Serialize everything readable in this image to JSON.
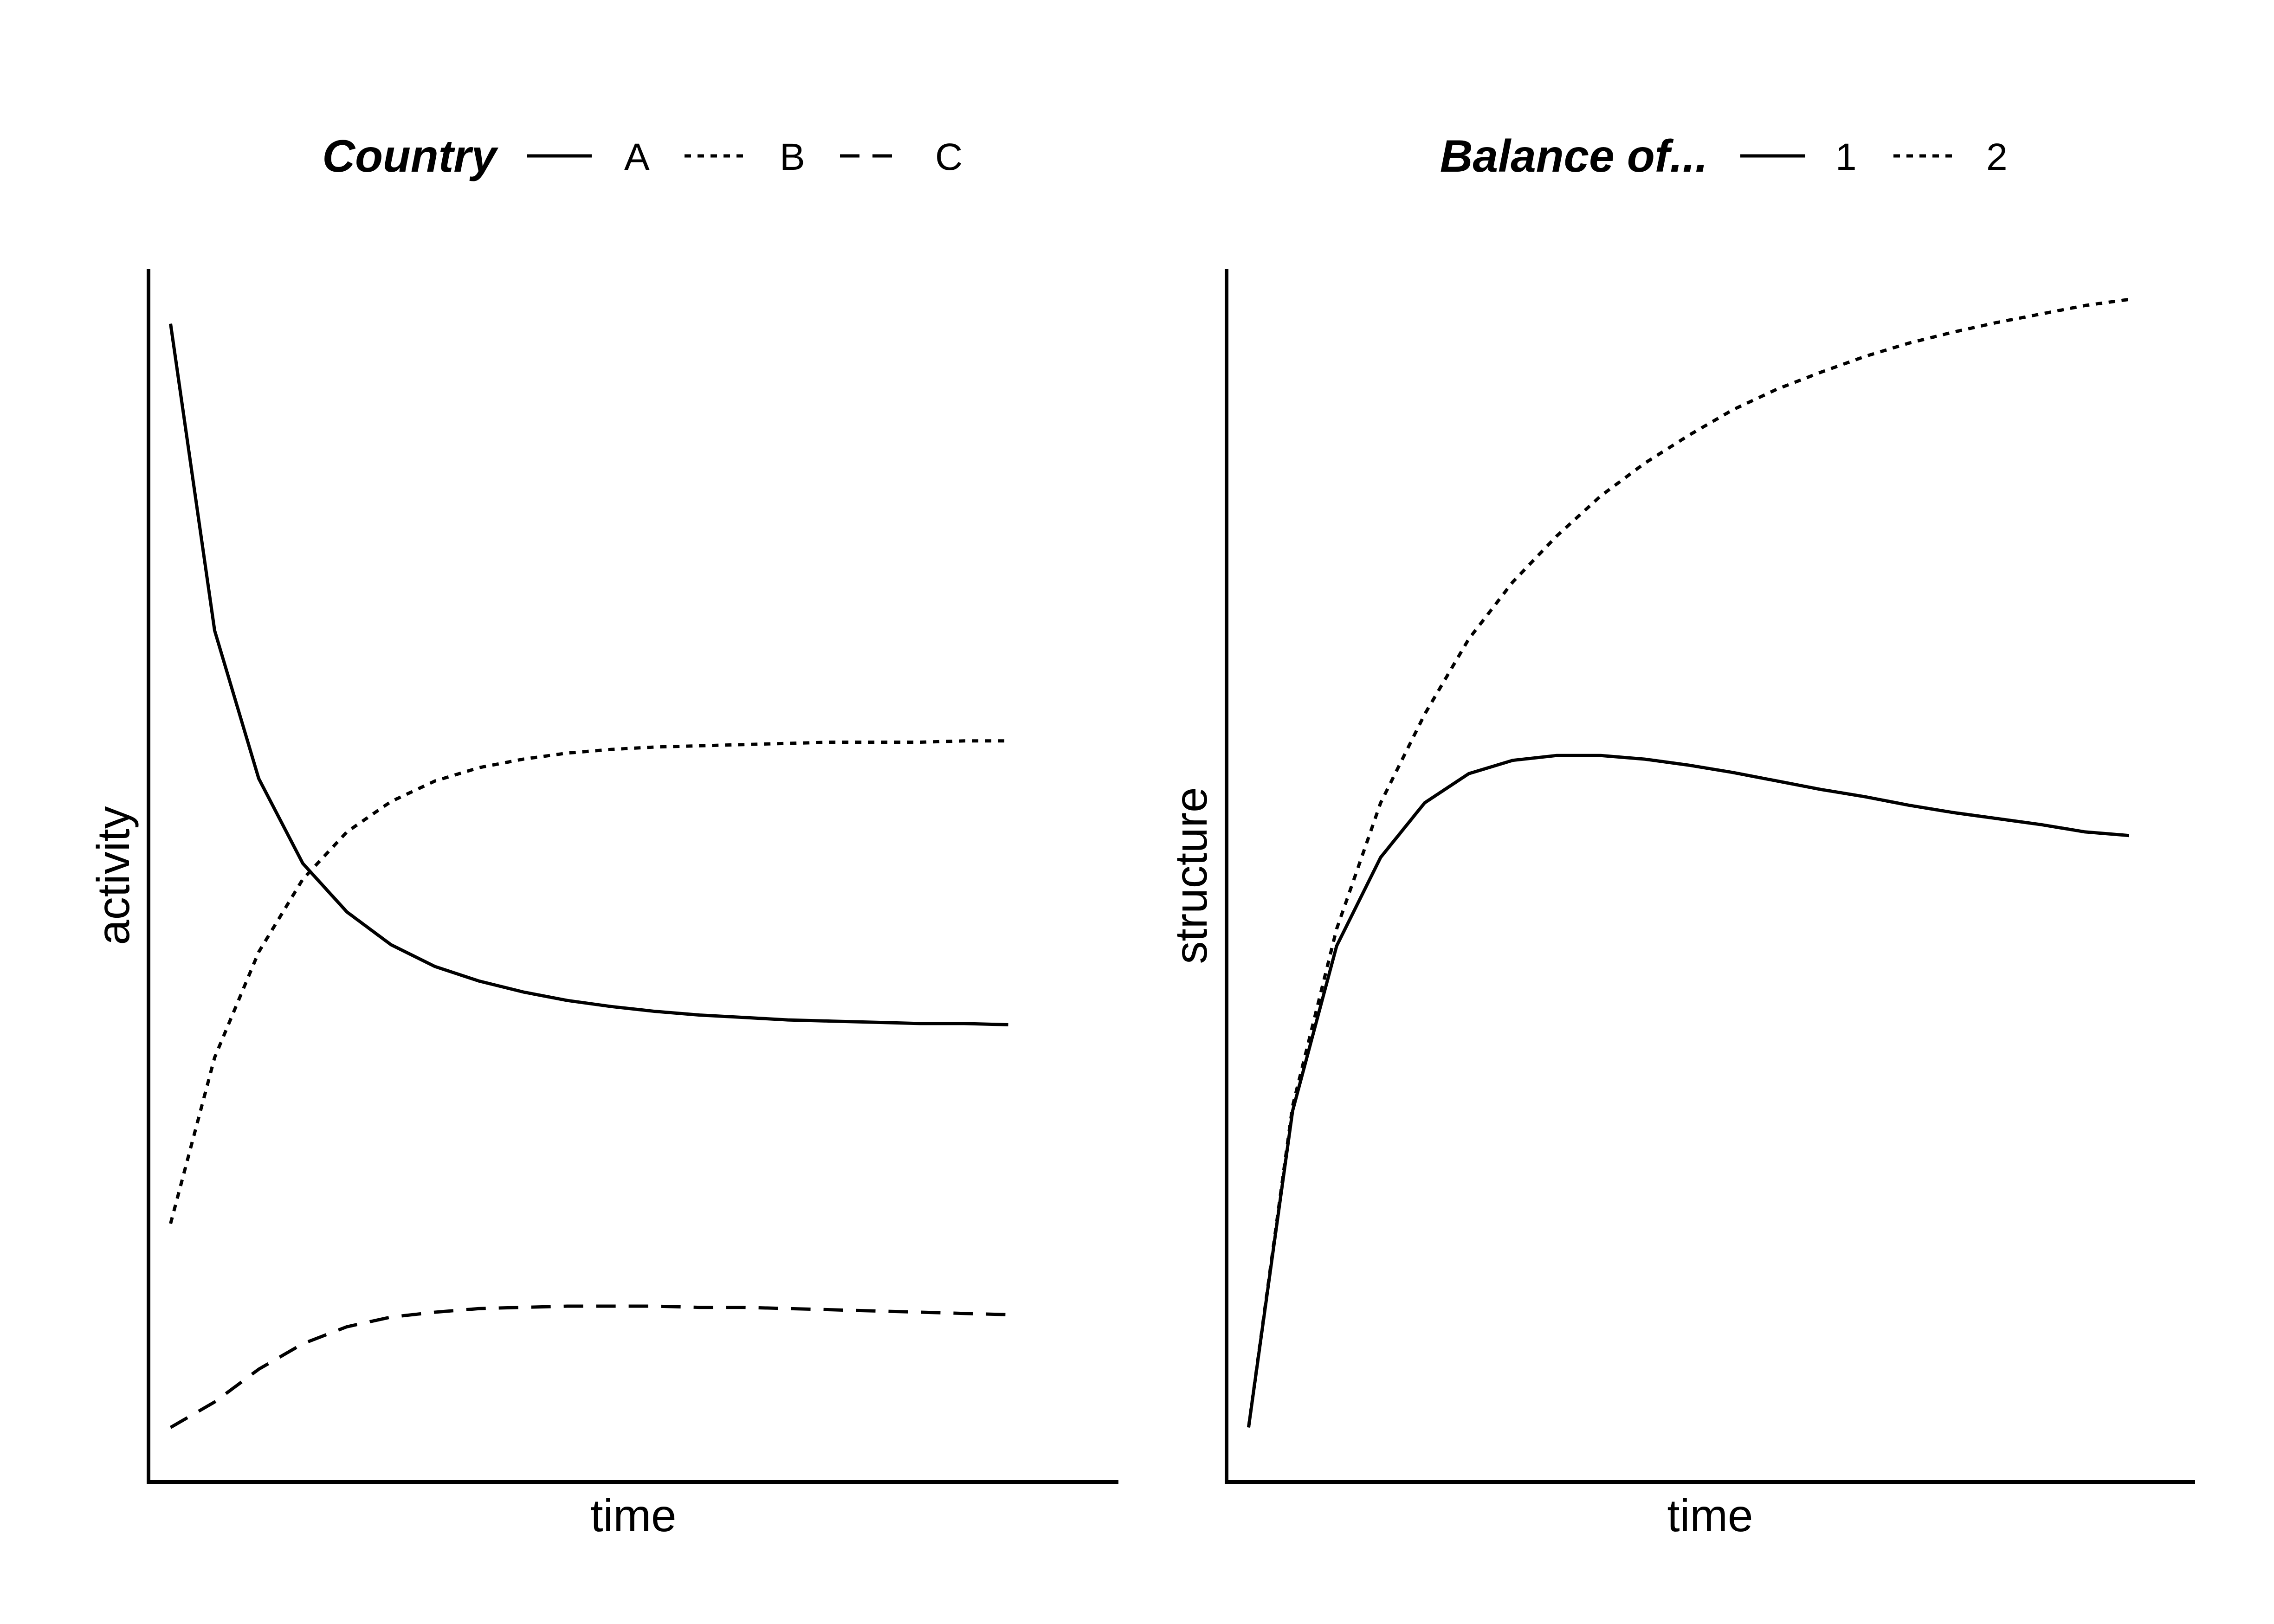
{
  "chart_data": [
    {
      "type": "line",
      "legend": {
        "title": "Country",
        "position": "top"
      },
      "xlabel": "time",
      "ylabel": "activity",
      "xlim": [
        0.5,
        22.5
      ],
      "ylim": [
        0,
        100
      ],
      "grid": false,
      "series": [
        {
          "name": "A",
          "linetype": "solid",
          "x": [
            1,
            2,
            3,
            4,
            5,
            6,
            7,
            8,
            9,
            10,
            11,
            12,
            13,
            14,
            15,
            16,
            17,
            18,
            19,
            20
          ],
          "values": [
            95.5,
            70.2,
            58.0,
            51.0,
            47.0,
            44.3,
            42.5,
            41.3,
            40.4,
            39.7,
            39.2,
            38.8,
            38.5,
            38.3,
            38.1,
            38.0,
            37.9,
            37.8,
            37.8,
            37.7
          ]
        },
        {
          "name": "B",
          "linetype": "dotted",
          "x": [
            1,
            2,
            3,
            4,
            5,
            6,
            7,
            8,
            9,
            10,
            11,
            12,
            13,
            14,
            15,
            16,
            17,
            18,
            19,
            20
          ],
          "values": [
            21.3,
            35.0,
            43.7,
            49.7,
            53.6,
            56.1,
            57.8,
            58.9,
            59.6,
            60.1,
            60.4,
            60.6,
            60.7,
            60.8,
            60.9,
            61.0,
            61.0,
            61.0,
            61.1,
            61.1
          ]
        },
        {
          "name": "C",
          "linetype": "dashed",
          "x": [
            1,
            2,
            3,
            4,
            5,
            6,
            7,
            8,
            9,
            10,
            11,
            12,
            13,
            14,
            15,
            16,
            17,
            18,
            19,
            20
          ],
          "values": [
            4.5,
            6.6,
            9.3,
            11.4,
            12.8,
            13.6,
            14.0,
            14.3,
            14.4,
            14.5,
            14.5,
            14.5,
            14.4,
            14.4,
            14.3,
            14.2,
            14.1,
            14.0,
            13.9,
            13.8
          ]
        }
      ]
    },
    {
      "type": "line",
      "legend": {
        "title": "Balance of...",
        "position": "top"
      },
      "xlabel": "time",
      "ylabel": "structure",
      "xlim": [
        0.5,
        22.5
      ],
      "ylim": [
        0,
        100
      ],
      "grid": false,
      "series": [
        {
          "name": "1",
          "linetype": "solid",
          "x": [
            1,
            2,
            3,
            4,
            5,
            6,
            7,
            8,
            9,
            10,
            11,
            12,
            13,
            14,
            15,
            16,
            17,
            18,
            19,
            20,
            21
          ],
          "values": [
            4.5,
            30.6,
            44.2,
            51.5,
            56.0,
            58.4,
            59.5,
            59.9,
            59.9,
            59.6,
            59.1,
            58.5,
            57.8,
            57.1,
            56.5,
            55.8,
            55.2,
            54.7,
            54.2,
            53.6,
            53.3
          ]
        },
        {
          "name": "2",
          "linetype": "dotted",
          "x": [
            1,
            2,
            3,
            4,
            5,
            6,
            7,
            8,
            9,
            10,
            11,
            12,
            13,
            14,
            15,
            16,
            17,
            18,
            19,
            20,
            21
          ],
          "values": [
            4.5,
            31.0,
            45.6,
            56.0,
            63.3,
            69.5,
            74.2,
            78.0,
            81.3,
            84.0,
            86.3,
            88.4,
            90.1,
            91.5,
            92.8,
            93.9,
            94.8,
            95.6,
            96.3,
            97.0,
            97.5
          ]
        }
      ]
    }
  ]
}
